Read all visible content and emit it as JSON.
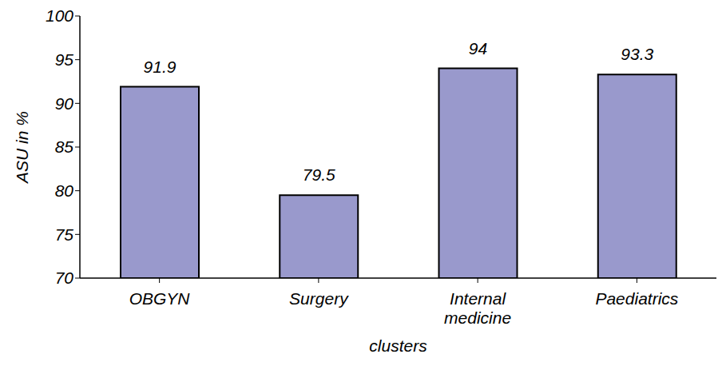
{
  "chart_data": {
    "type": "bar",
    "categories": [
      "OBGYN",
      "Surgery",
      "Internal medicine",
      "Paediatrics"
    ],
    "values": [
      91.9,
      79.5,
      94,
      93.3
    ],
    "color": "#9999cc",
    "xlabel": "clusters",
    "ylabel": "ASU in %",
    "ylim": [
      70,
      100
    ],
    "yticks": [
      70,
      75,
      80,
      85,
      90,
      95,
      100
    ],
    "grid": false,
    "data_labels": true
  }
}
